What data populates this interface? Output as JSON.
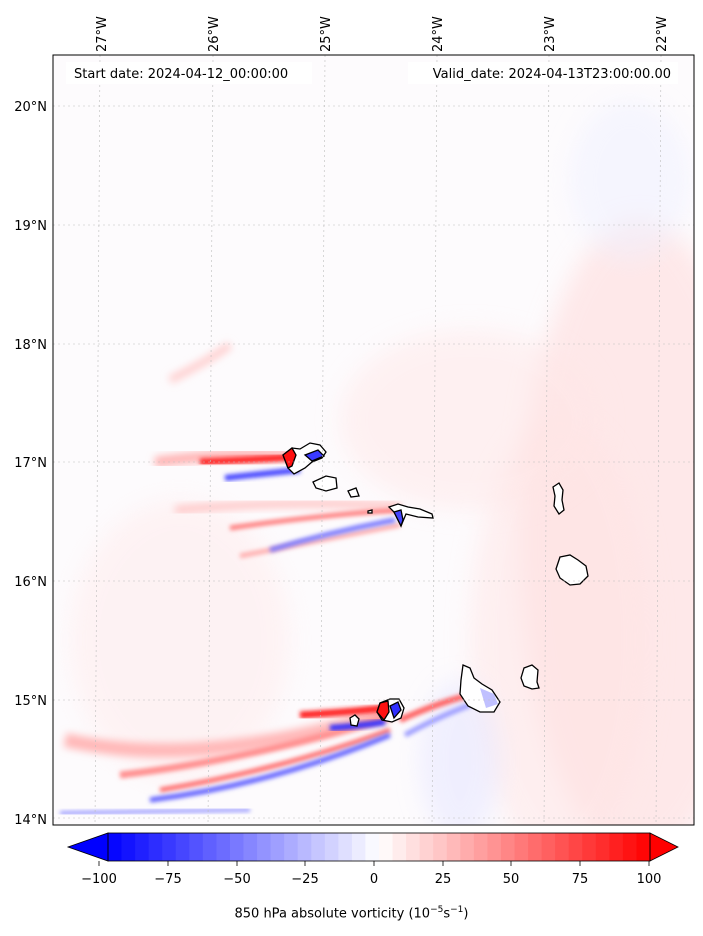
{
  "header": {
    "start_date": "Start date: 2024-04-12_00:00:00",
    "valid_date": "Valid_date: 2024-04-13T23:00:00.00"
  },
  "map": {
    "lon_ticks": [
      "27°W",
      "26°W",
      "25°W",
      "24°W",
      "23°W",
      "22°W"
    ],
    "lat_ticks": [
      "20°N",
      "19°N",
      "18°N",
      "17°N",
      "16°N",
      "15°N",
      "14°N"
    ],
    "gridlines": true,
    "colormap": "bwr",
    "colors": {
      "negative": "#0000ff",
      "zero": "#ffffff",
      "positive": "#ff0000"
    }
  },
  "colorbar": {
    "tick_labels": [
      "−100",
      "−75",
      "−50",
      "−25",
      "0",
      "25",
      "50",
      "75",
      "100"
    ],
    "label_text": "850 hPa absolute vorticity (10",
    "label_exp1": "−5",
    "label_mid": "s",
    "label_exp2": "−1",
    "label_end": ")"
  }
}
